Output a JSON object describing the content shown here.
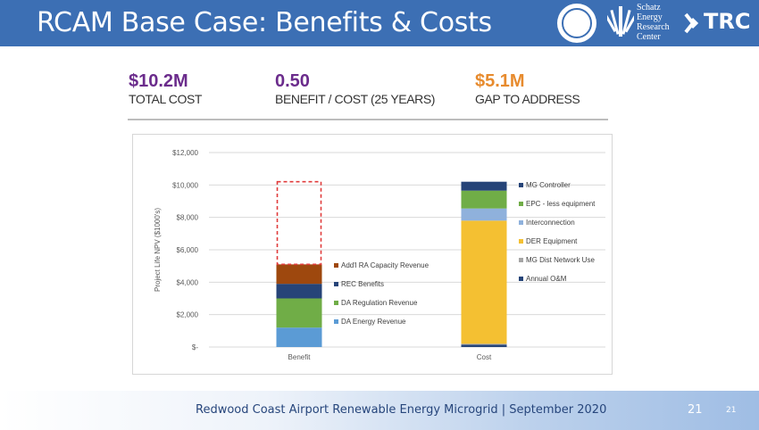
{
  "slide": {
    "title": "RCAM Base Case: Benefits & Costs",
    "logos": {
      "seal": "county-seal-logo",
      "schatz_lines": [
        "Schatz",
        "Energy",
        "Research",
        "Center"
      ],
      "trc": "TRC"
    }
  },
  "stats": [
    {
      "value": "$10.2M",
      "label": "TOTAL COST",
      "color": "#6b2c8c"
    },
    {
      "value": "0.50",
      "label": "BENEFIT / COST (25 YEARS)",
      "color": "#6b2c8c"
    },
    {
      "value": "$5.1M",
      "label": "GAP TO ADDRESS",
      "color": "#e78b2e"
    }
  ],
  "chart_data": {
    "type": "bar",
    "stacked": true,
    "ylabel": "Project Life NPV ($1000's)",
    "ylim": [
      0,
      12000
    ],
    "yticks": [
      {
        "value": 0,
        "label": "$-"
      },
      {
        "value": 2000,
        "label": "$2,000"
      },
      {
        "value": 4000,
        "label": "$4,000"
      },
      {
        "value": 6000,
        "label": "$6,000"
      },
      {
        "value": 8000,
        "label": "$8,000"
      },
      {
        "value": 10000,
        "label": "$10,000"
      },
      {
        "value": 12000,
        "label": "$12,000"
      }
    ],
    "categories": [
      "Benefit",
      "Cost"
    ],
    "benefit_series": [
      {
        "name": "DA Energy Revenue",
        "value": 1200,
        "color": "#5b9bd5"
      },
      {
        "name": "DA Regulation Revenue",
        "value": 1800,
        "color": "#70ad47"
      },
      {
        "name": "REC Benefits",
        "value": 900,
        "color": "#264478"
      },
      {
        "name": "Add'l RA Capacity Revenue",
        "value": 1200,
        "color": "#9e480e"
      }
    ],
    "benefit_gap": {
      "base": 5100,
      "top": 10200,
      "color": "#e03c3c"
    },
    "cost_series": [
      {
        "name": "Annual O&M",
        "value": 150,
        "color": "#264478"
      },
      {
        "name": "MG Dist Network Use",
        "value": 50,
        "color": "#a5a5a5"
      },
      {
        "name": "DER Equipment",
        "value": 7600,
        "color": "#f4c032"
      },
      {
        "name": "Interconnection",
        "value": 750,
        "color": "#8fb1dc"
      },
      {
        "name": "EPC - less equipment",
        "value": 1100,
        "color": "#70ad47"
      },
      {
        "name": "MG Controller",
        "value": 550,
        "color": "#264478"
      }
    ]
  },
  "footer": {
    "text": "Redwood Coast Airport Renewable Energy Microgrid |  September 2020",
    "page_big": "21",
    "page_small": "21"
  }
}
